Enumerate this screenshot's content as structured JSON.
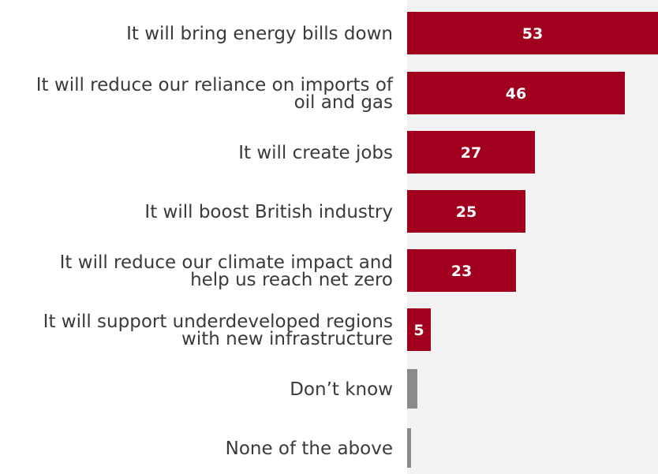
{
  "chart_data": {
    "type": "bar",
    "orientation": "horizontal",
    "categories": [
      "It will bring energy bills down",
      "It will reduce our reliance on imports of oil and gas",
      "It will create jobs",
      "It will boost British industry",
      "It will reduce our climate impact and help us reach net zero",
      "It will support underdeveloped regions with new infrastructure",
      "Don’t know",
      "None of the above"
    ],
    "category_lines": [
      [
        "It will bring energy bills down"
      ],
      [
        "It will reduce our reliance on imports of",
        "oil and gas"
      ],
      [
        "It will create jobs"
      ],
      [
        "It will boost British industry"
      ],
      [
        "It will reduce our climate impact and",
        "help us reach net zero"
      ],
      [
        "It will support underdeveloped regions",
        "with new infrastructure"
      ],
      [
        "Don’t know"
      ],
      [
        "None of the above"
      ]
    ],
    "values": [
      53,
      46,
      27,
      25,
      23,
      5,
      2,
      1
    ],
    "data_labels": [
      "53",
      "46",
      "27",
      "25",
      "23",
      "5",
      "",
      ""
    ],
    "bar_colors": [
      "#a0001e",
      "#a0001e",
      "#a0001e",
      "#a0001e",
      "#a0001e",
      "#a0001e",
      "#8a8a8a",
      "#8a8a8a"
    ],
    "plot_background": "#f2f2f2",
    "title": "",
    "xlabel": "",
    "ylabel": "",
    "xlim": [
      0,
      53
    ],
    "grid": false,
    "legend": "none"
  }
}
